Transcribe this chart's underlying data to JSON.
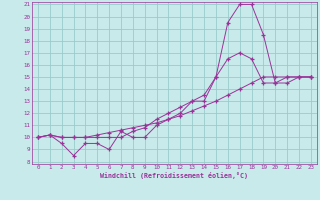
{
  "bg_color": "#c8eaea",
  "line_color": "#993399",
  "grid_color": "#99cccc",
  "xlabel": "Windchill (Refroidissement éolien,°C)",
  "xlim": [
    0,
    23
  ],
  "ylim": [
    8,
    21
  ],
  "xticks": [
    0,
    1,
    2,
    3,
    4,
    5,
    6,
    7,
    8,
    9,
    10,
    11,
    12,
    13,
    14,
    15,
    16,
    17,
    18,
    19,
    20,
    21,
    22,
    23
  ],
  "yticks": [
    8,
    9,
    10,
    11,
    12,
    13,
    14,
    15,
    16,
    17,
    18,
    19,
    20,
    21
  ],
  "series1_x": [
    0,
    1,
    2,
    3,
    4,
    5,
    6,
    7,
    8,
    9,
    10,
    11,
    12,
    13,
    14,
    15,
    16,
    17,
    18,
    19,
    20,
    21,
    22,
    23
  ],
  "series1_y": [
    10,
    10.2,
    9.5,
    8.5,
    9.5,
    9.5,
    9,
    10.5,
    10,
    10,
    11,
    11.5,
    12,
    13,
    13,
    15,
    16.5,
    17,
    16.5,
    14.5,
    14.5,
    15,
    15,
    15
  ],
  "series2_x": [
    0,
    1,
    2,
    3,
    4,
    5,
    6,
    7,
    8,
    9,
    10,
    11,
    12,
    13,
    14,
    15,
    16,
    17,
    18,
    19,
    20,
    21,
    22,
    23
  ],
  "series2_y": [
    10,
    10.2,
    10,
    10,
    10,
    10,
    10,
    10,
    10.5,
    10.8,
    11.5,
    12,
    12.5,
    13,
    13.5,
    15,
    19.5,
    21,
    21,
    18.5,
    14.5,
    14.5,
    15,
    15
  ],
  "series3_x": [
    0,
    1,
    2,
    3,
    4,
    5,
    6,
    7,
    8,
    9,
    10,
    11,
    12,
    13,
    14,
    15,
    16,
    17,
    18,
    19,
    20,
    21,
    22,
    23
  ],
  "series3_y": [
    10,
    10.2,
    10,
    10,
    10,
    10.2,
    10.4,
    10.6,
    10.8,
    11,
    11.2,
    11.5,
    11.8,
    12.2,
    12.6,
    13,
    13.5,
    14,
    14.5,
    15,
    15,
    15,
    15,
    15
  ]
}
